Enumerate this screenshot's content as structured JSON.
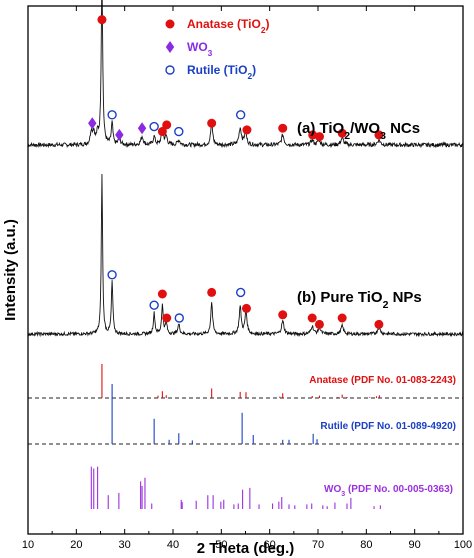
{
  "chart_data": {
    "type": "line",
    "title": "",
    "xlabel": "2 Theta (deg.)",
    "ylabel": "Intensity (a.u.)",
    "xlim": [
      10,
      100
    ],
    "xticks": [
      "10",
      "20",
      "30",
      "40",
      "50",
      "60",
      "70",
      "80",
      "90",
      "100"
    ],
    "legend": {
      "placement": "top-center",
      "entries": [
        {
          "key": "anatase",
          "name": "Anatase (TiO",
          "sub": "2",
          "tail": ")",
          "marker": "filled-circle",
          "color": "#e01010"
        },
        {
          "key": "wo3",
          "name": "WO",
          "sub": "3",
          "tail": "",
          "marker": "diamond",
          "color": "#8a2be2"
        },
        {
          "key": "rutile",
          "name": "Rutile (TiO",
          "sub": "2",
          "tail": ")",
          "marker": "open-circle",
          "color": "#1a3fc4"
        }
      ]
    },
    "series": [
      {
        "key": "a",
        "name_prefix": "(a) TiO",
        "name_sub1": "2",
        "name_mid": "/WO",
        "name_sub2": "3",
        "name_tail": " NCs",
        "baseline": 0.24,
        "noise": 0.012,
        "peaks": [
          {
            "x": 23.1,
            "h": 0.08,
            "w": 0.25
          },
          {
            "x": 23.6,
            "h": 0.07,
            "w": 0.25
          },
          {
            "x": 24.4,
            "h": 0.06,
            "w": 0.25
          },
          {
            "x": 25.3,
            "h": 1.0,
            "w": 0.18
          },
          {
            "x": 27.4,
            "h": 0.13,
            "w": 0.2
          },
          {
            "x": 28.9,
            "h": 0.04,
            "w": 0.25
          },
          {
            "x": 33.6,
            "h": 0.05,
            "w": 0.3
          },
          {
            "x": 36.1,
            "h": 0.05,
            "w": 0.25
          },
          {
            "x": 37.8,
            "h": 0.1,
            "w": 0.25
          },
          {
            "x": 38.6,
            "h": 0.05,
            "w": 0.25
          },
          {
            "x": 41.2,
            "h": 0.03,
            "w": 0.3
          },
          {
            "x": 48.0,
            "h": 0.13,
            "w": 0.25
          },
          {
            "x": 53.9,
            "h": 0.1,
            "w": 0.3
          },
          {
            "x": 55.0,
            "h": 0.07,
            "w": 0.3
          },
          {
            "x": 62.7,
            "h": 0.06,
            "w": 0.3
          },
          {
            "x": 68.8,
            "h": 0.03,
            "w": 0.3
          },
          {
            "x": 70.2,
            "h": 0.03,
            "w": 0.3
          },
          {
            "x": 75.0,
            "h": 0.04,
            "w": 0.35
          },
          {
            "x": 82.6,
            "h": 0.03,
            "w": 0.35
          }
        ]
      },
      {
        "key": "b",
        "name_prefix": "(b) Pure TiO",
        "name_sub1": "2",
        "name_mid": "",
        "name_sub2": "",
        "name_tail": " NPs",
        "baseline": 0.1,
        "noise": 0.01,
        "peaks": [
          {
            "x": 25.3,
            "h": 1.0,
            "w": 0.16
          },
          {
            "x": 27.4,
            "h": 0.33,
            "w": 0.18
          },
          {
            "x": 36.1,
            "h": 0.13,
            "w": 0.2
          },
          {
            "x": 37.8,
            "h": 0.18,
            "w": 0.2
          },
          {
            "x": 38.6,
            "h": 0.07,
            "w": 0.2
          },
          {
            "x": 41.2,
            "h": 0.06,
            "w": 0.25
          },
          {
            "x": 48.0,
            "h": 0.2,
            "w": 0.22
          },
          {
            "x": 53.9,
            "h": 0.17,
            "w": 0.25
          },
          {
            "x": 55.1,
            "h": 0.14,
            "w": 0.25
          },
          {
            "x": 62.7,
            "h": 0.08,
            "w": 0.3
          },
          {
            "x": 68.8,
            "h": 0.05,
            "w": 0.3
          },
          {
            "x": 70.3,
            "h": 0.04,
            "w": 0.3
          },
          {
            "x": 75.0,
            "h": 0.05,
            "w": 0.3
          },
          {
            "x": 82.6,
            "h": 0.04,
            "w": 0.35
          }
        ]
      }
    ],
    "markers": {
      "a": [
        {
          "x": 25.3,
          "phase": "anatase",
          "y": 0.99
        },
        {
          "x": 23.3,
          "phase": "wo3",
          "y": 0.37
        },
        {
          "x": 27.4,
          "phase": "rutile",
          "y": 0.42
        },
        {
          "x": 28.9,
          "phase": "wo3",
          "y": 0.3
        },
        {
          "x": 33.6,
          "phase": "wo3",
          "y": 0.34
        },
        {
          "x": 36.1,
          "phase": "rutile",
          "y": 0.35
        },
        {
          "x": 37.8,
          "phase": "anatase",
          "y": 0.32
        },
        {
          "x": 38.7,
          "phase": "anatase",
          "y": 0.36
        },
        {
          "x": 41.2,
          "phase": "rutile",
          "y": 0.32
        },
        {
          "x": 48.0,
          "phase": "anatase",
          "y": 0.37
        },
        {
          "x": 54.0,
          "phase": "rutile",
          "y": 0.42
        },
        {
          "x": 55.3,
          "phase": "anatase",
          "y": 0.33
        },
        {
          "x": 62.7,
          "phase": "anatase",
          "y": 0.34
        },
        {
          "x": 68.9,
          "phase": "anatase",
          "y": 0.3
        },
        {
          "x": 70.3,
          "phase": "anatase",
          "y": 0.29
        },
        {
          "x": 75.0,
          "phase": "anatase",
          "y": 0.31
        },
        {
          "x": 82.6,
          "phase": "anatase",
          "y": 0.3
        }
      ],
      "b": [
        {
          "x": 27.4,
          "phase": "rutile",
          "y": 0.47
        },
        {
          "x": 36.1,
          "phase": "rutile",
          "y": 0.28
        },
        {
          "x": 37.8,
          "phase": "anatase",
          "y": 0.35
        },
        {
          "x": 38.7,
          "phase": "anatase",
          "y": 0.2
        },
        {
          "x": 41.3,
          "phase": "rutile",
          "y": 0.2
        },
        {
          "x": 48.0,
          "phase": "anatase",
          "y": 0.36
        },
        {
          "x": 54.0,
          "phase": "rutile",
          "y": 0.36
        },
        {
          "x": 55.2,
          "phase": "anatase",
          "y": 0.26
        },
        {
          "x": 62.7,
          "phase": "anatase",
          "y": 0.22
        },
        {
          "x": 68.8,
          "phase": "anatase",
          "y": 0.2
        },
        {
          "x": 70.3,
          "phase": "anatase",
          "y": 0.16
        },
        {
          "x": 75.0,
          "phase": "anatase",
          "y": 0.2
        },
        {
          "x": 82.6,
          "phase": "anatase",
          "y": 0.16
        }
      ]
    },
    "references": [
      {
        "key": "anatase",
        "label": "Anatase (PDF No. 01-083-2243)",
        "color": "#e01010",
        "lines": [
          {
            "x": 25.3,
            "h": 1.0
          },
          {
            "x": 36.9,
            "h": 0.07
          },
          {
            "x": 37.8,
            "h": 0.2
          },
          {
            "x": 38.6,
            "h": 0.08
          },
          {
            "x": 48.0,
            "h": 0.28
          },
          {
            "x": 53.9,
            "h": 0.18
          },
          {
            "x": 55.1,
            "h": 0.17
          },
          {
            "x": 62.1,
            "h": 0.04
          },
          {
            "x": 62.7,
            "h": 0.14
          },
          {
            "x": 68.8,
            "h": 0.06
          },
          {
            "x": 70.3,
            "h": 0.07
          },
          {
            "x": 74.1,
            "h": 0.03
          },
          {
            "x": 75.0,
            "h": 0.1
          },
          {
            "x": 76.0,
            "h": 0.03
          },
          {
            "x": 80.7,
            "h": 0.02
          },
          {
            "x": 82.1,
            "h": 0.05
          },
          {
            "x": 82.7,
            "h": 0.08
          }
        ]
      },
      {
        "key": "rutile",
        "label": "Rutile (PDF No. 01-089-4920)",
        "color": "#1a3fc4",
        "lines": [
          {
            "x": 27.4,
            "h": 1.0
          },
          {
            "x": 36.1,
            "h": 0.42
          },
          {
            "x": 39.2,
            "h": 0.07
          },
          {
            "x": 41.2,
            "h": 0.18
          },
          {
            "x": 44.0,
            "h": 0.06
          },
          {
            "x": 54.3,
            "h": 0.52
          },
          {
            "x": 56.6,
            "h": 0.15
          },
          {
            "x": 62.7,
            "h": 0.07
          },
          {
            "x": 64.0,
            "h": 0.07
          },
          {
            "x": 69.0,
            "h": 0.17
          },
          {
            "x": 69.8,
            "h": 0.08
          }
        ]
      },
      {
        "key": "wo3",
        "label": "WO",
        "label_sub": "3",
        "label_tail": " (PDF No. 00-005-0363)",
        "color": "#9b30e0",
        "lines": [
          {
            "x": 23.1,
            "h": 0.92
          },
          {
            "x": 23.6,
            "h": 0.88
          },
          {
            "x": 24.4,
            "h": 0.92
          },
          {
            "x": 26.6,
            "h": 0.3
          },
          {
            "x": 28.8,
            "h": 0.35
          },
          {
            "x": 33.3,
            "h": 0.6
          },
          {
            "x": 33.6,
            "h": 0.5
          },
          {
            "x": 34.2,
            "h": 0.68
          },
          {
            "x": 35.6,
            "h": 0.12
          },
          {
            "x": 41.7,
            "h": 0.2
          },
          {
            "x": 41.9,
            "h": 0.15
          },
          {
            "x": 44.8,
            "h": 0.18
          },
          {
            "x": 47.2,
            "h": 0.3
          },
          {
            "x": 48.3,
            "h": 0.3
          },
          {
            "x": 49.9,
            "h": 0.16
          },
          {
            "x": 50.5,
            "h": 0.2
          },
          {
            "x": 52.6,
            "h": 0.1
          },
          {
            "x": 53.5,
            "h": 0.12
          },
          {
            "x": 54.4,
            "h": 0.42
          },
          {
            "x": 55.9,
            "h": 0.46
          },
          {
            "x": 57.8,
            "h": 0.1
          },
          {
            "x": 60.6,
            "h": 0.12
          },
          {
            "x": 61.9,
            "h": 0.16
          },
          {
            "x": 62.5,
            "h": 0.26
          },
          {
            "x": 64.0,
            "h": 0.1
          },
          {
            "x": 65.2,
            "h": 0.08
          },
          {
            "x": 67.7,
            "h": 0.1
          },
          {
            "x": 68.7,
            "h": 0.12
          },
          {
            "x": 71.0,
            "h": 0.08
          },
          {
            "x": 71.9,
            "h": 0.06
          },
          {
            "x": 73.5,
            "h": 0.14
          },
          {
            "x": 76.0,
            "h": 0.12
          },
          {
            "x": 76.8,
            "h": 0.24
          },
          {
            "x": 81.6,
            "h": 0.06
          },
          {
            "x": 82.9,
            "h": 0.08
          }
        ]
      }
    ]
  }
}
